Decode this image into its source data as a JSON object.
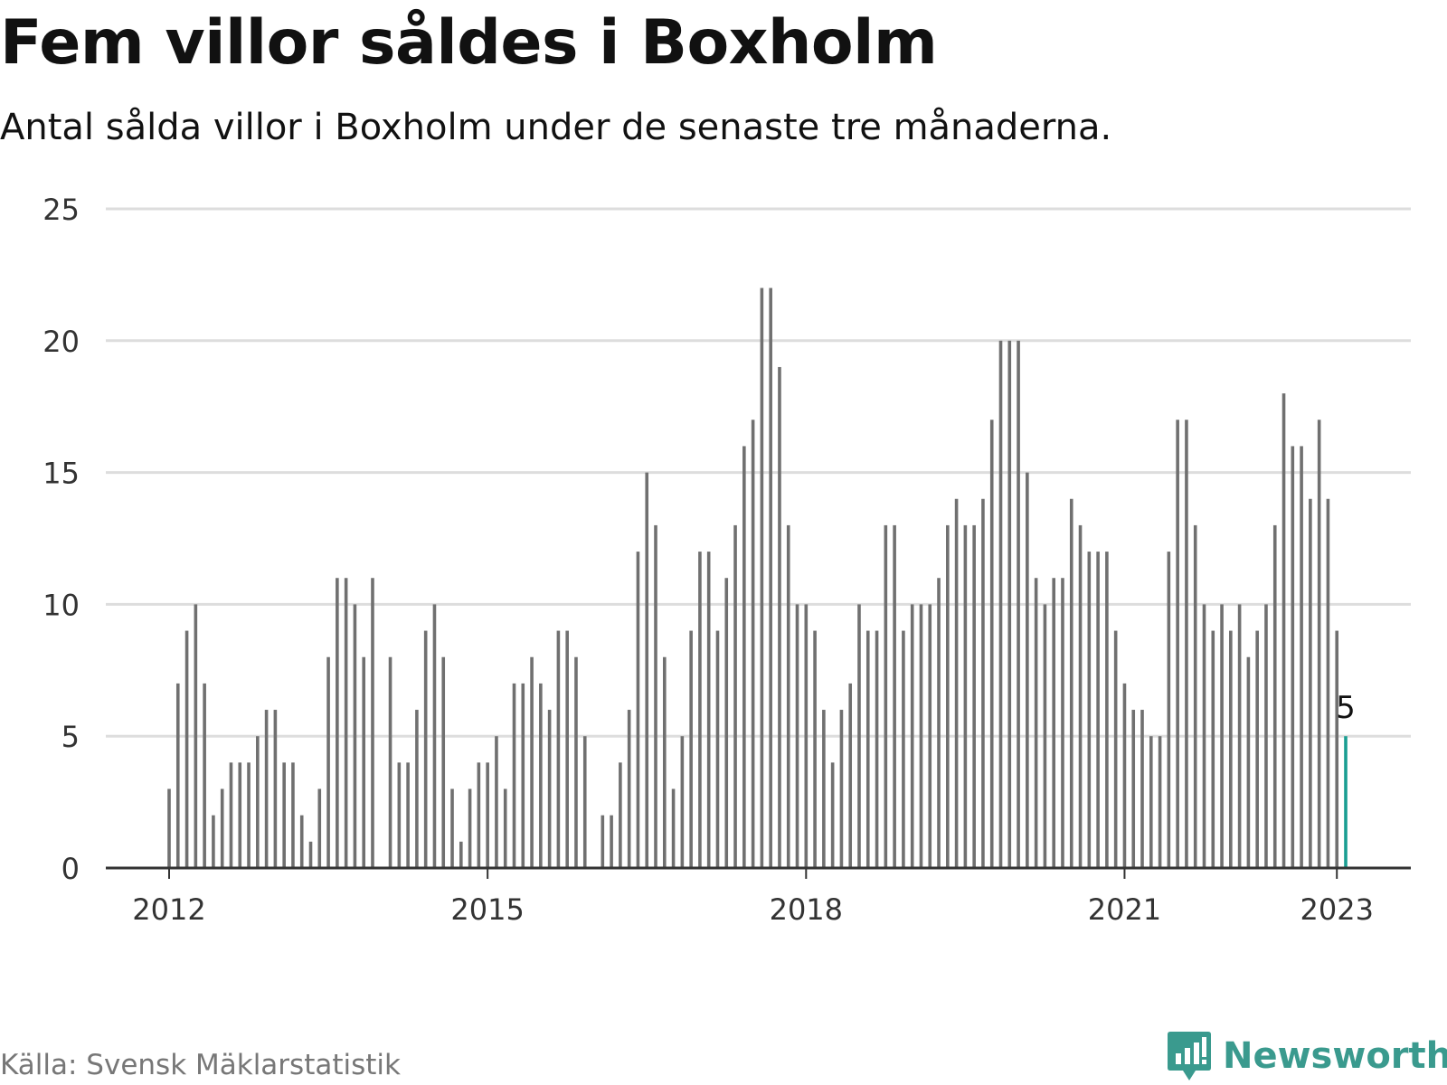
{
  "header": {
    "title": "Fem villor såldes i Boxholm",
    "subtitle": "Antal sålda villor i Boxholm under de senaste tre månaderna."
  },
  "footer": {
    "source": "Källa: Svensk Mäklarstatistik",
    "brand": "Newsworthy",
    "brand_icon": "newsworthy-logo-icon"
  },
  "colors": {
    "bar": "#707070",
    "highlight": "#1a9e92",
    "brand": "#3a9a8e"
  },
  "chart_data": {
    "type": "bar",
    "ylim": [
      0,
      25
    ],
    "yticks": [
      0,
      5,
      10,
      15,
      20,
      25
    ],
    "xtick_labels": [
      "2012",
      "2015",
      "2018",
      "2021",
      "2023"
    ],
    "grid": true,
    "start_month": "2012-01",
    "values": [
      3,
      7,
      9,
      10,
      7,
      2,
      3,
      4,
      4,
      4,
      5,
      6,
      6,
      4,
      4,
      2,
      1,
      3,
      8,
      11,
      11,
      10,
      8,
      11,
      0,
      8,
      4,
      4,
      6,
      9,
      10,
      8,
      3,
      1,
      3,
      4,
      4,
      5,
      3,
      7,
      7,
      8,
      7,
      6,
      9,
      9,
      8,
      5,
      0,
      2,
      2,
      4,
      6,
      12,
      15,
      13,
      8,
      3,
      5,
      9,
      12,
      12,
      9,
      11,
      13,
      16,
      17,
      22,
      22,
      19,
      13,
      10,
      10,
      9,
      6,
      4,
      6,
      7,
      10,
      9,
      9,
      13,
      13,
      9,
      10,
      10,
      10,
      11,
      13,
      14,
      13,
      13,
      14,
      17,
      20,
      20,
      20,
      15,
      11,
      10,
      11,
      11,
      14,
      13,
      12,
      12,
      12,
      9,
      7,
      6,
      6,
      5,
      5,
      12,
      17,
      17,
      13,
      10,
      9,
      10,
      9,
      10,
      8,
      9,
      10,
      13,
      18,
      16,
      16,
      14,
      17,
      14,
      9,
      5
    ],
    "highlight_label": "5"
  }
}
